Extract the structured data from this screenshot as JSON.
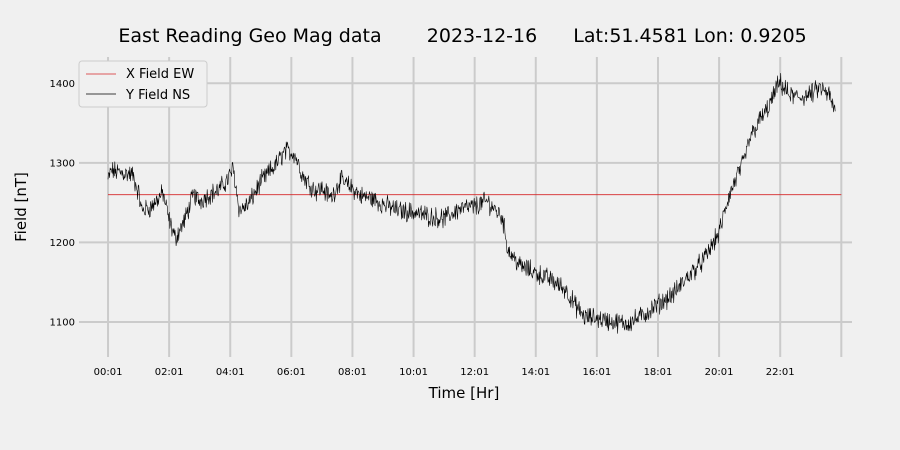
{
  "chart_data": {
    "type": "line",
    "title": {
      "name": "East Reading Geo Mag data",
      "date": "2023-12-16",
      "location": "Lat:51.4581  Lon: 0.9205"
    },
    "xlabel": "Time  [Hr]",
    "ylabel": "Field  [nT]",
    "x_unit": "hour",
    "xlim": [
      -0.95,
      24.35
    ],
    "ylim": [
      1056,
      1433
    ],
    "x_ticks": [
      {
        "x": 0.0,
        "label": "00:01"
      },
      {
        "x": 2.0,
        "label": "02:01"
      },
      {
        "x": 4.0,
        "label": "04:01"
      },
      {
        "x": 6.0,
        "label": "06:01"
      },
      {
        "x": 8.0,
        "label": "08:01"
      },
      {
        "x": 10.0,
        "label": "10:01"
      },
      {
        "x": 12.0,
        "label": "12:01"
      },
      {
        "x": 14.0,
        "label": "14:01"
      },
      {
        "x": 16.0,
        "label": "16:01"
      },
      {
        "x": 18.0,
        "label": "18:01"
      },
      {
        "x": 20.0,
        "label": "20:01"
      },
      {
        "x": 22.0,
        "label": "22:01"
      }
    ],
    "y_ticks": [
      1100,
      1200,
      1300,
      1400
    ],
    "grid": true,
    "legend_position": "top-left",
    "series": [
      {
        "name": "X Field EW",
        "color": "#d62728",
        "x": [
          0,
          24
        ],
        "y": [
          1260,
          1260
        ]
      },
      {
        "name": "Y Field NS",
        "color": "#000000",
        "x": [
          0,
          0.1,
          0.4,
          0.8,
          1.0,
          1.1,
          1.4,
          1.8,
          2.0,
          2.2,
          2.5,
          2.8,
          3.0,
          3.3,
          3.6,
          3.9,
          4.1,
          4.3,
          4.6,
          5.0,
          5.5,
          5.8,
          6.1,
          6.4,
          6.8,
          7.0,
          7.3,
          7.6,
          8.0,
          8.3,
          8.6,
          9.0,
          9.5,
          10.0,
          10.5,
          11.0,
          11.5,
          12.0,
          12.4,
          12.7,
          12.9,
          13.1,
          13.5,
          14.0,
          14.5,
          15.0,
          15.3,
          15.6,
          16.0,
          16.5,
          17.0,
          17.5,
          18.0,
          18.5,
          19.0,
          19.5,
          20.0,
          20.3,
          20.6,
          20.8,
          21.0,
          21.3,
          21.6,
          21.9,
          22.0,
          22.3,
          22.6,
          23.0,
          23.3,
          23.6,
          23.8
        ],
        "y": [
          1278,
          1290,
          1288,
          1285,
          1262,
          1240,
          1244,
          1262,
          1228,
          1205,
          1227,
          1260,
          1252,
          1260,
          1265,
          1278,
          1293,
          1240,
          1248,
          1276,
          1298,
          1315,
          1312,
          1282,
          1265,
          1268,
          1256,
          1278,
          1268,
          1258,
          1256,
          1248,
          1240,
          1238,
          1233,
          1230,
          1242,
          1245,
          1252,
          1240,
          1232,
          1190,
          1170,
          1162,
          1153,
          1140,
          1120,
          1106,
          1105,
          1100,
          1098,
          1108,
          1122,
          1135,
          1158,
          1178,
          1212,
          1255,
          1285,
          1300,
          1330,
          1352,
          1368,
          1395,
          1400,
          1385,
          1382,
          1386,
          1394,
          1385,
          1363
        ]
      }
    ]
  }
}
